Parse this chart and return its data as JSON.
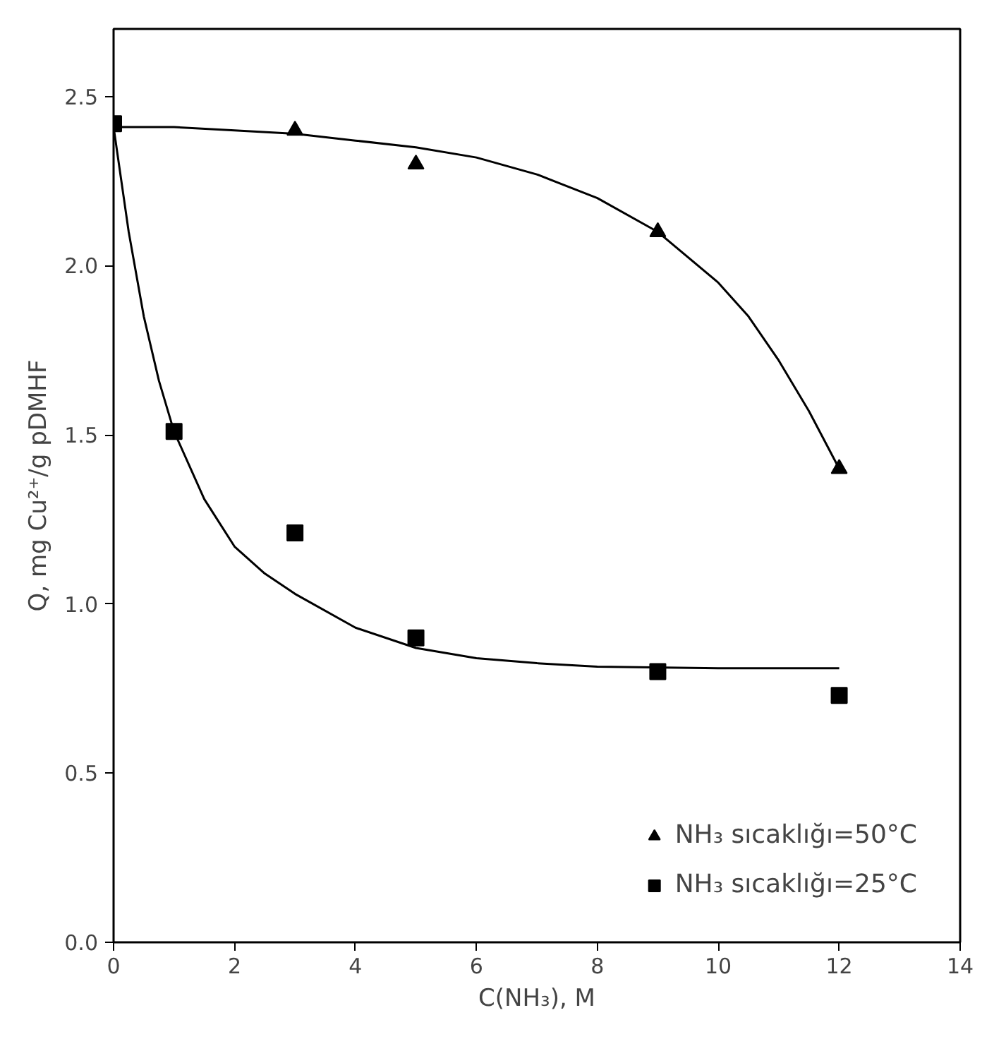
{
  "chart_data": {
    "type": "scatter",
    "xlabel": "C(NH₃), M",
    "ylabel": "Q, mg Cu²⁺/g pDMHF",
    "xlim": [
      0,
      14
    ],
    "xticks": [
      0,
      2,
      4,
      6,
      8,
      10,
      12,
      14
    ],
    "ylim": [
      0,
      2.7
    ],
    "yticks": [
      {
        "value": 0,
        "label": "0.0"
      },
      0.5,
      {
        "value": 1,
        "label": "1.0"
      },
      1.5,
      {
        "value": 2,
        "label": "2.0"
      },
      2.5
    ],
    "grid": false,
    "legend": "bottom right",
    "series": [
      {
        "name": "NH₃ sıcaklığı=50°C",
        "color": "#000000",
        "marker": "triangle",
        "x": [
          3,
          5,
          9,
          12
        ],
        "values": [
          2.4,
          2.3,
          2.1,
          1.4
        ]
      },
      {
        "name": "NH₃ sıcaklığı=25°C",
        "color": "#000000",
        "marker": "square",
        "x": [
          0,
          1,
          3,
          5,
          9,
          12
        ],
        "values": [
          2.42,
          1.51,
          1.21,
          0.9,
          0.8,
          0.73
        ]
      },
      {
        "type": "line",
        "color": "#000000",
        "marker": "none",
        "x": [
          0,
          1,
          2,
          3,
          4,
          5,
          6,
          7,
          8,
          9,
          10,
          10.5,
          11,
          11.5,
          12
        ],
        "values": [
          2.41,
          2.41,
          2.4,
          2.39,
          2.37,
          2.35,
          2.32,
          2.27,
          2.2,
          2.1,
          1.95,
          1.85,
          1.72,
          1.57,
          1.4
        ]
      },
      {
        "type": "line",
        "color": "#000000",
        "marker": "none",
        "x": [
          0,
          0.25,
          0.5,
          0.75,
          1,
          1.5,
          2,
          2.5,
          3,
          4,
          5,
          6,
          7,
          8,
          10,
          12
        ],
        "values": [
          2.41,
          2.1,
          1.85,
          1.66,
          1.51,
          1.31,
          1.17,
          1.09,
          1.03,
          0.93,
          0.87,
          0.84,
          0.825,
          0.815,
          0.81,
          0.81
        ]
      }
    ]
  }
}
